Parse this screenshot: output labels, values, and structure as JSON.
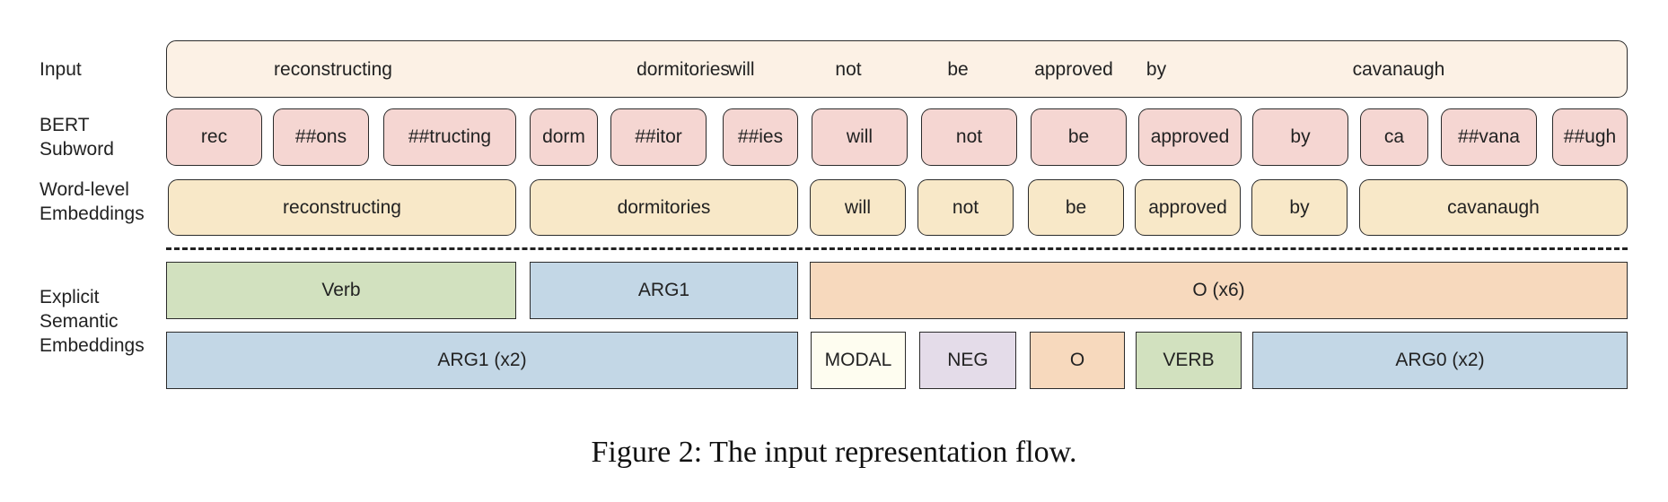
{
  "labels": {
    "input": "Input",
    "bert_line1": "BERT",
    "bert_line2": "Subword",
    "word_line1": "Word-level",
    "word_line2": "Embeddings",
    "explicit_line1": "Explicit",
    "explicit_line2": "Semantic",
    "explicit_line3": "Embeddings"
  },
  "input_tokens": [
    "reconstructing",
    "dormitories",
    "will",
    "not",
    "be",
    "approved",
    "by",
    "cavanaugh"
  ],
  "subwords": [
    "rec",
    "##ons",
    "##tructing",
    "dorm",
    "##itor",
    "##ies",
    "will",
    "not",
    "be",
    "approved",
    "by",
    "ca",
    "##vana",
    "##ugh"
  ],
  "words": [
    "reconstructing",
    "dormitories",
    "will",
    "not",
    "be",
    "approved",
    "by",
    "cavanaugh"
  ],
  "semantic_row1": [
    "Verb",
    "ARG1",
    "O (x6)"
  ],
  "semantic_row2": [
    "ARG1 (x2)",
    "MODAL",
    "NEG",
    "O",
    "VERB",
    "ARG0 (x2)"
  ],
  "colors": {
    "input": "#fcf1e5",
    "subword": "#f5d6d2",
    "word": "#f8e8c8",
    "verb": "#d2e1bf",
    "arg": "#c3d7e6",
    "o": "#f7d9bd",
    "modal": "#fefdf0",
    "neg": "#e4dce9"
  },
  "caption": "Figure 2: The input representation flow."
}
